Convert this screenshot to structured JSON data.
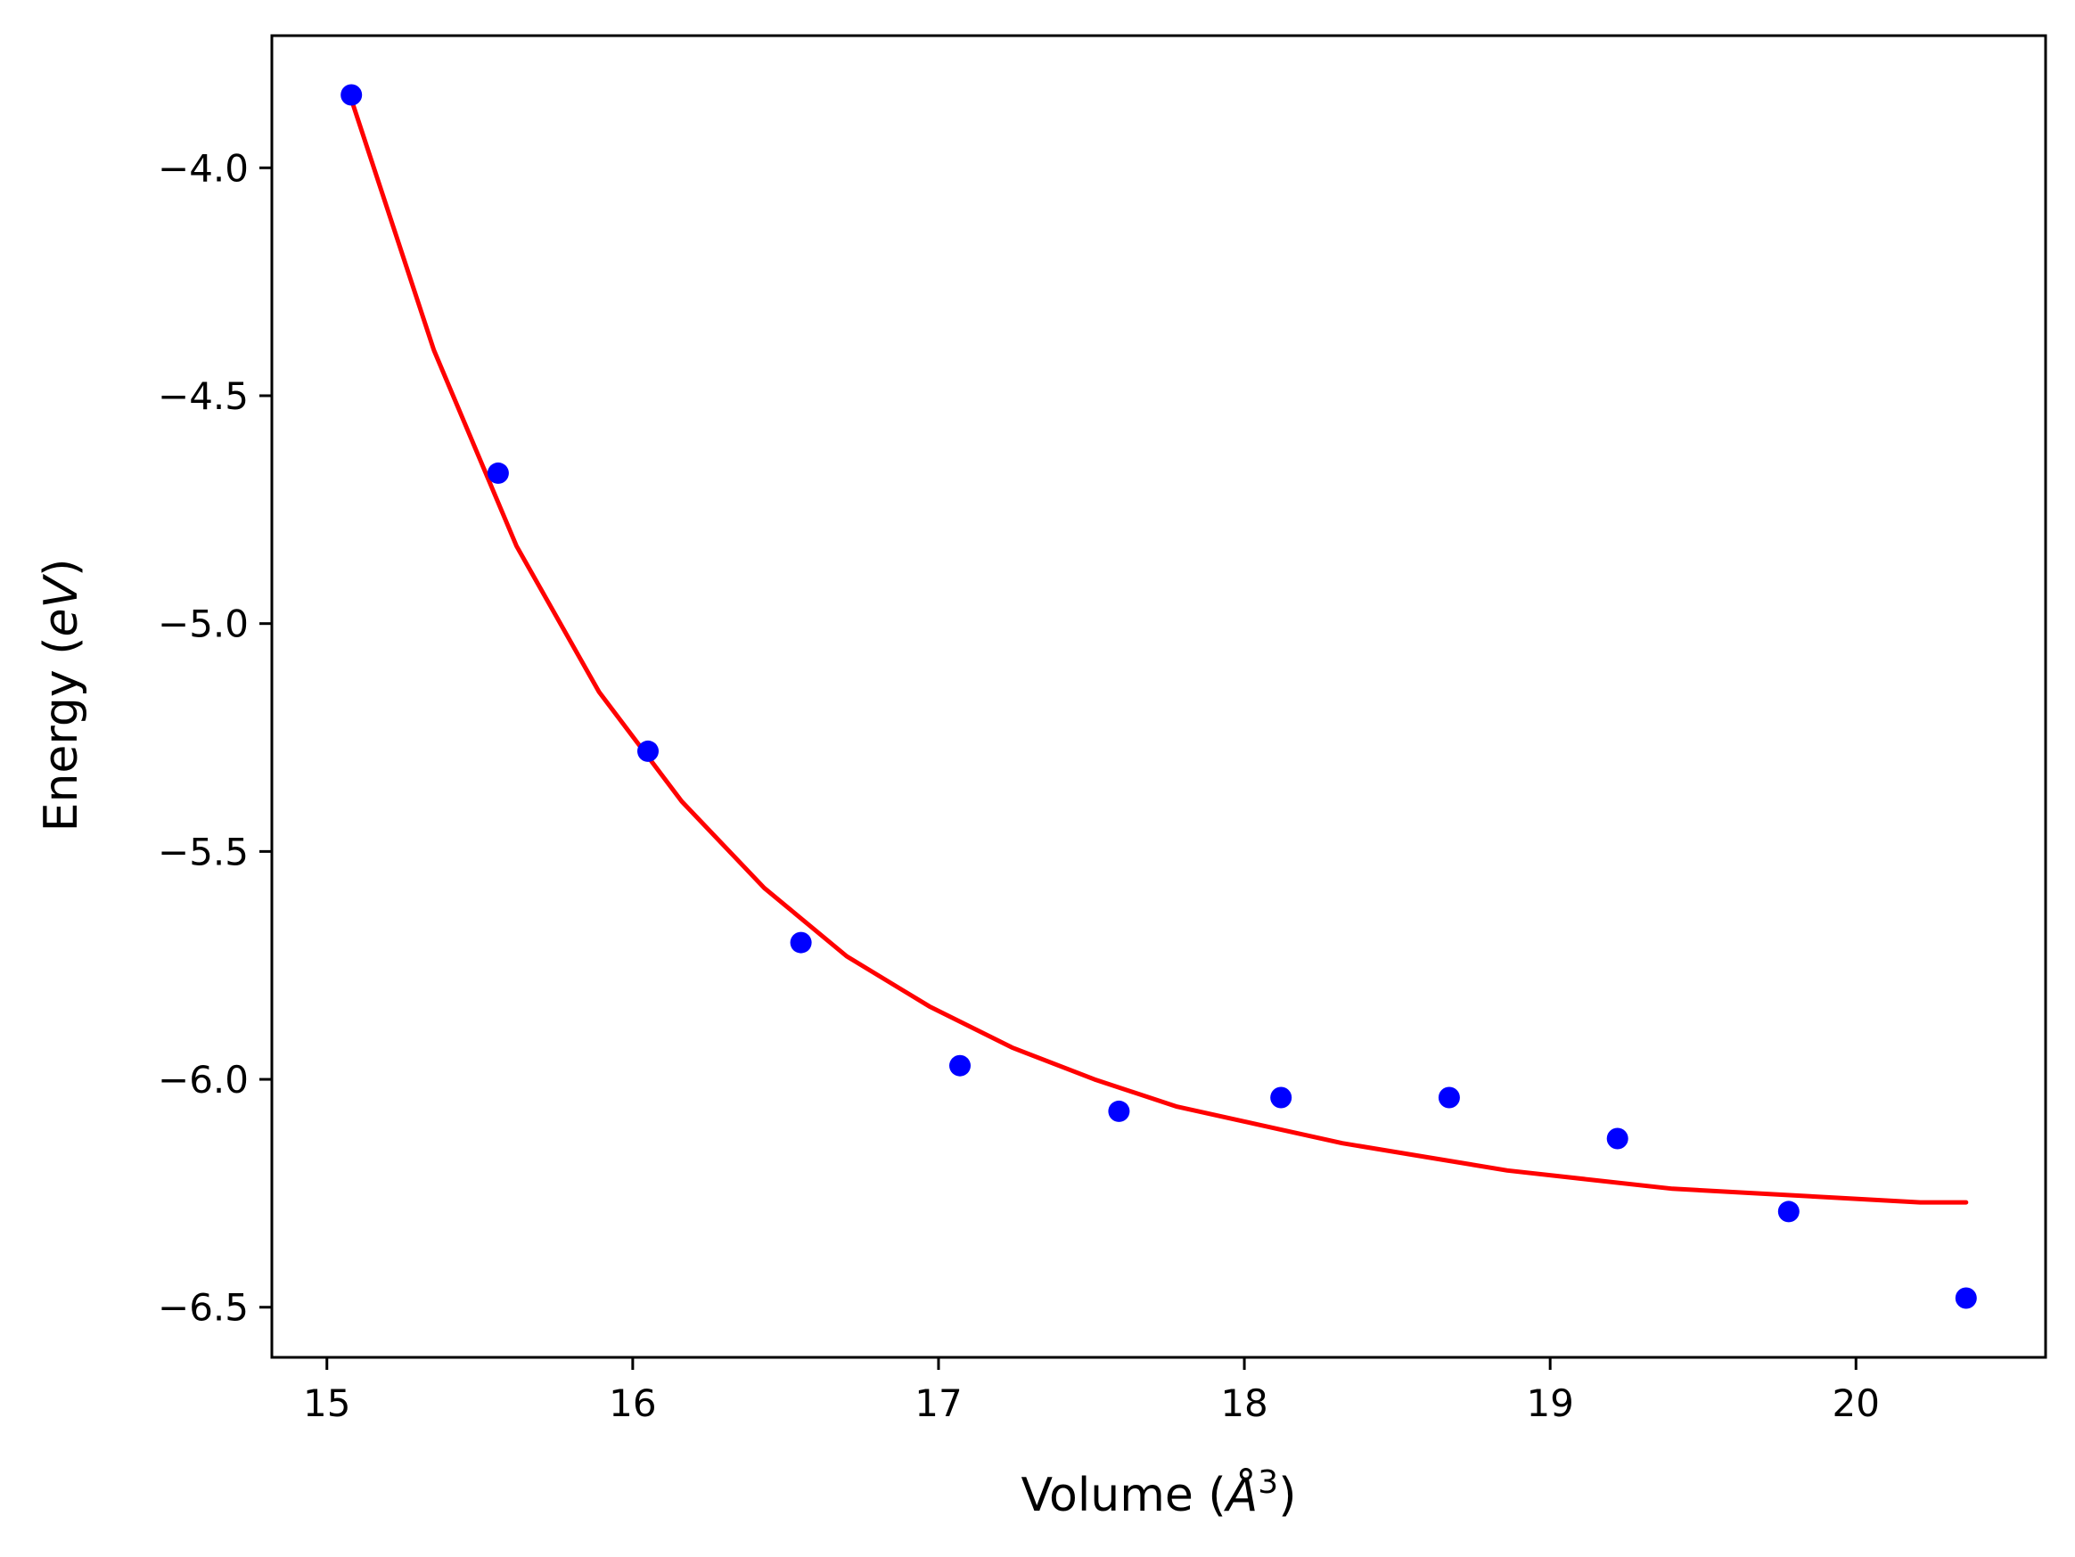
{
  "chart_data": {
    "type": "scatter",
    "title": "",
    "xlabel": {
      "prefix": "Volume (",
      "symbol": "Å",
      "sup": "3",
      "suffix": ")"
    },
    "ylabel": {
      "prefix": "Energy (",
      "italic": "eV",
      "suffix": ")"
    },
    "xlim": [
      14.82,
      20.62
    ],
    "ylim": [
      -6.61,
      -3.71
    ],
    "x_ticks": [
      15,
      16,
      17,
      18,
      19,
      20
    ],
    "x_tick_labels": [
      "15",
      "16",
      "17",
      "18",
      "19",
      "20"
    ],
    "y_ticks": [
      -4.0,
      -4.5,
      -5.0,
      -5.5,
      -6.0,
      -6.5
    ],
    "y_tick_labels": [
      "−4.0",
      "−4.5",
      "−5.0",
      "−5.5",
      "−6.0",
      "−6.5"
    ],
    "grid": false,
    "series": [
      {
        "kind": "points",
        "color": "#0000ff",
        "x": [
          15.08,
          15.56,
          16.05,
          16.55,
          17.07,
          17.59,
          18.12,
          18.67,
          19.22,
          19.78,
          20.36
        ],
        "y": [
          -3.84,
          -4.67,
          -5.28,
          -5.7,
          -5.97,
          -6.07,
          -6.04,
          -6.04,
          -6.13,
          -6.29,
          -6.48
        ]
      },
      {
        "kind": "fit",
        "color": "#ff0000",
        "x": [
          15.08,
          15.35,
          15.62,
          15.89,
          16.16,
          16.43,
          16.7,
          16.97,
          17.24,
          17.51,
          17.78,
          18.05,
          18.32,
          18.59,
          18.86,
          19.13,
          19.4,
          19.67,
          19.94,
          20.21,
          20.36
        ],
        "y": [
          -3.85,
          -4.4,
          -4.83,
          -5.15,
          -5.39,
          -5.58,
          -5.73,
          -5.84,
          -5.93,
          -6.0,
          -6.06,
          -6.1,
          -6.14,
          -6.17,
          -6.2,
          -6.22,
          -6.24,
          -6.25,
          -6.26,
          -6.27,
          -6.27
        ]
      }
    ]
  }
}
